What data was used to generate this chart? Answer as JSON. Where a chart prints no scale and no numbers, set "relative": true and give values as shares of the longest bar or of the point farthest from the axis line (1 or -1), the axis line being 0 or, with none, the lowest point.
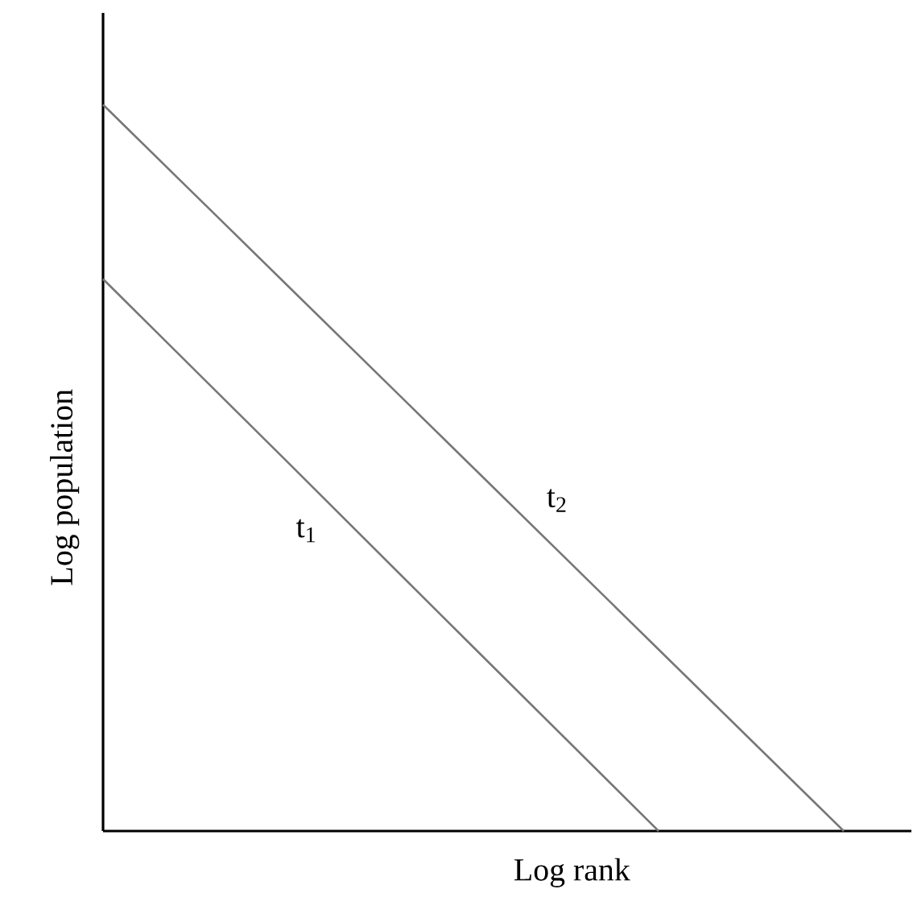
{
  "chart_data": {
    "type": "line",
    "relative": true,
    "xlabel": "Log rank",
    "ylabel": "Log population",
    "categories": [
      null,
      null,
      null,
      null,
      null
    ],
    "series": [
      {
        "name": "t$_{1}$",
        "color": "#777777",
        "values": [
          0.76,
          0.507,
          0.253,
          0,
          null
        ]
      },
      {
        "name": "t$_{2}$",
        "color": "#777777",
        "values": [
          1,
          0.75,
          0.5,
          0.25,
          0
        ]
      }
    ]
  }
}
